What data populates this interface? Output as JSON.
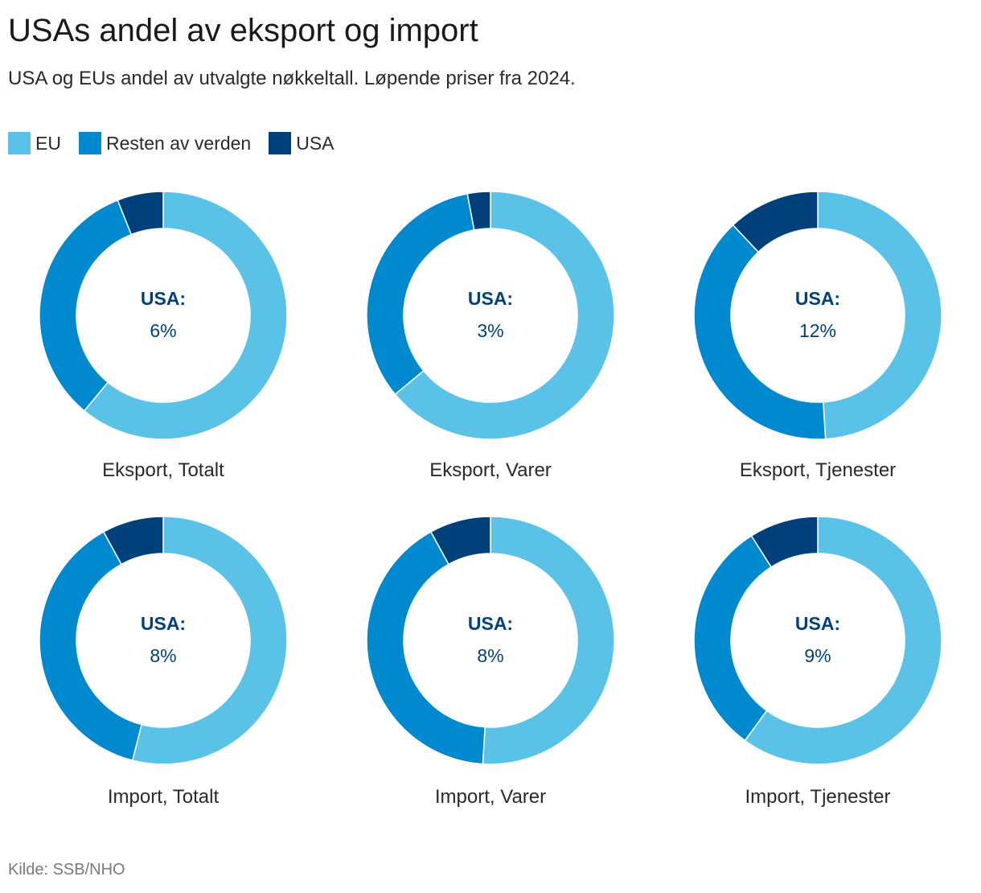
{
  "title": "USAs andel av eksport og import",
  "subtitle": "USA og EUs andel av utvalgte nøkkeltall. Løpende priser fra 2024.",
  "source": "Kilde: SSB/NHO",
  "colors": {
    "EU": "#5bc2e7",
    "Resten av verden": "#0089cf",
    "USA": "#00417b",
    "center_text": "#00417b"
  },
  "legend": [
    {
      "label": "EU",
      "color": "#5bc2e7"
    },
    {
      "label": "Resten av verden",
      "color": "#0089cf"
    },
    {
      "label": "USA",
      "color": "#00417b"
    }
  ],
  "chart_data": {
    "type": "pie",
    "variant": "donut",
    "series_order": [
      "EU",
      "Resten av verden",
      "USA"
    ],
    "center_label": "USA:",
    "charts": [
      {
        "label": "Eksport, Totalt",
        "usa_text": "6%",
        "values": {
          "EU": 61,
          "Resten av verden": 33,
          "USA": 6
        }
      },
      {
        "label": "Eksport, Varer",
        "usa_text": "3%",
        "values": {
          "EU": 64,
          "Resten av verden": 33,
          "USA": 3
        }
      },
      {
        "label": "Eksport, Tjenester",
        "usa_text": "12%",
        "values": {
          "EU": 49,
          "Resten av verden": 39,
          "USA": 12
        }
      },
      {
        "label": "Import, Totalt",
        "usa_text": "8%",
        "values": {
          "EU": 54,
          "Resten av verden": 38,
          "USA": 8
        }
      },
      {
        "label": "Import, Varer",
        "usa_text": "8%",
        "values": {
          "EU": 51,
          "Resten av verden": 41,
          "USA": 8
        }
      },
      {
        "label": "Import, Tjenester",
        "usa_text": "9%",
        "values": {
          "EU": 60,
          "Resten av verden": 31,
          "USA": 9
        }
      }
    ]
  }
}
